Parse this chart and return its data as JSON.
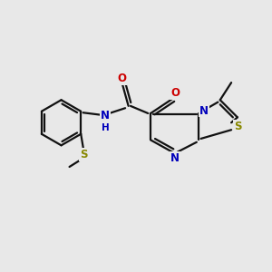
{
  "background_color": "#e8e8e8",
  "figsize": [
    3.0,
    3.0
  ],
  "dpi": 100,
  "bond_color": "#111111",
  "bond_lw": 1.6,
  "atom_colors": {
    "N": "#0000cc",
    "O": "#cc0000",
    "S": "#999900",
    "H": "#0000cc"
  },
  "S_color": "#888800",
  "N_color": "#0000bb",
  "O_color": "#cc0000"
}
